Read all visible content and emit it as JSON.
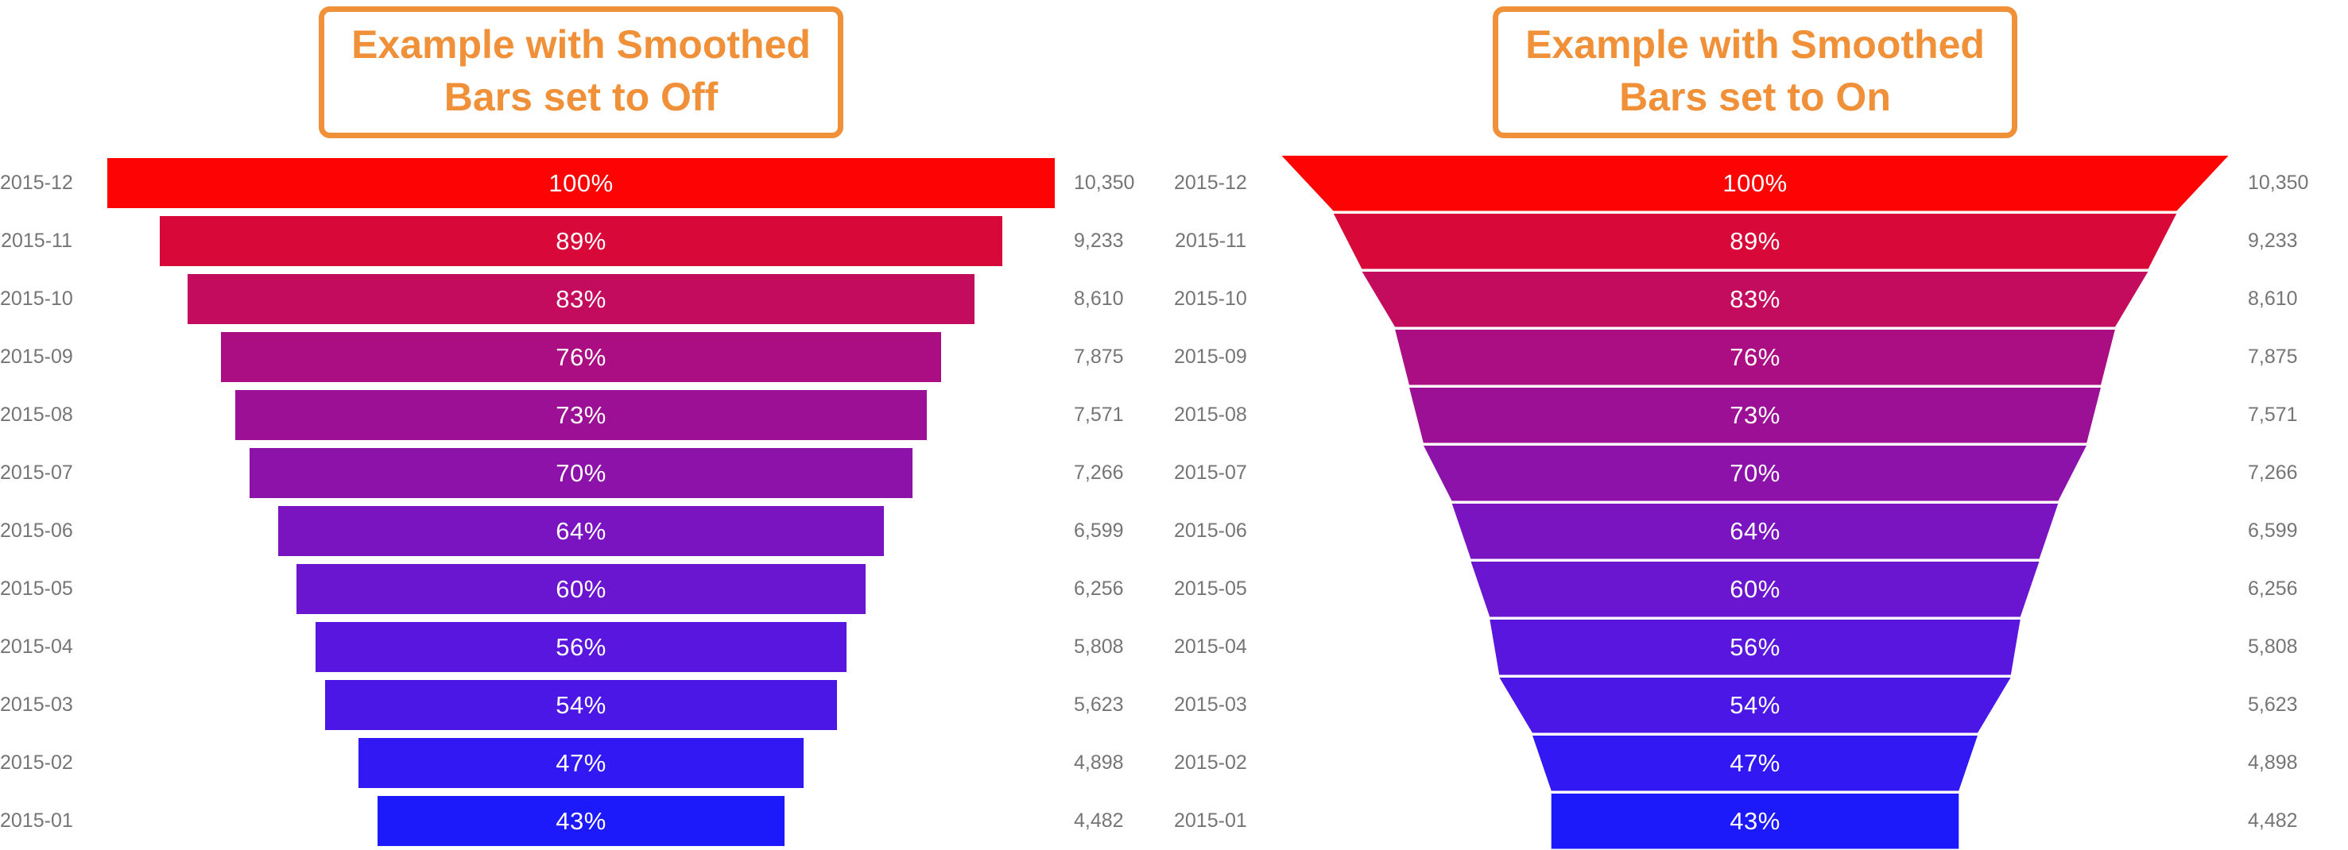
{
  "page": {
    "background": "#ffffff",
    "label_color": "#757575",
    "bar_text_color": "#ffffff",
    "title_color": "#f0913a"
  },
  "chart_data": [
    {
      "type": "funnel",
      "smoothed": false,
      "title": "Example with Smoothed Bars set to Off",
      "title_lines": [
        "Example with Smoothed",
        "Bars set to Off"
      ],
      "categories": [
        "2015-12",
        "2015-11",
        "2015-10",
        "2015-09",
        "2015-08",
        "2015-07",
        "2015-06",
        "2015-05",
        "2015-04",
        "2015-03",
        "2015-02",
        "2015-01"
      ],
      "percentages": [
        100,
        89,
        83,
        76,
        73,
        70,
        64,
        60,
        56,
        54,
        47,
        43
      ],
      "percent_labels": [
        "100%",
        "89%",
        "83%",
        "76%",
        "73%",
        "70%",
        "64%",
        "60%",
        "56%",
        "54%",
        "47%",
        "43%"
      ],
      "values": [
        10350,
        9233,
        8610,
        7875,
        7571,
        7266,
        6599,
        6256,
        5808,
        5623,
        4898,
        4482
      ],
      "value_labels": [
        "10,350",
        "9,233",
        "8,610",
        "7,875",
        "7,571",
        "7,266",
        "6,599",
        "6,256",
        "5,808",
        "5,623",
        "4,898",
        "4,482"
      ],
      "colors": [
        "#fd0303",
        "#d80938",
        "#c30c5e",
        "#ab0e82",
        "#9c1095",
        "#8c12aa",
        "#7a13c0",
        "#6a15cf",
        "#5916de",
        "#4b17e7",
        "#3218f3",
        "#1c19fb"
      ],
      "legend": "none",
      "grid": false
    },
    {
      "type": "funnel",
      "smoothed": true,
      "title": "Example with Smoothed Bars set to On",
      "title_lines": [
        "Example with Smoothed",
        "Bars set to On"
      ],
      "categories": [
        "2015-12",
        "2015-11",
        "2015-10",
        "2015-09",
        "2015-08",
        "2015-07",
        "2015-06",
        "2015-05",
        "2015-04",
        "2015-03",
        "2015-02",
        "2015-01"
      ],
      "percentages": [
        100,
        89,
        83,
        76,
        73,
        70,
        64,
        60,
        56,
        54,
        47,
        43
      ],
      "percent_labels": [
        "100%",
        "89%",
        "83%",
        "76%",
        "73%",
        "70%",
        "64%",
        "60%",
        "56%",
        "54%",
        "47%",
        "43%"
      ],
      "values": [
        10350,
        9233,
        8610,
        7875,
        7571,
        7266,
        6599,
        6256,
        5808,
        5623,
        4898,
        4482
      ],
      "value_labels": [
        "10,350",
        "9,233",
        "8,610",
        "7,875",
        "7,571",
        "7,266",
        "6,599",
        "6,256",
        "5,808",
        "5,623",
        "4,898",
        "4,482"
      ],
      "colors": [
        "#fd0303",
        "#d80938",
        "#c30c5e",
        "#ab0e82",
        "#9c1095",
        "#8c12aa",
        "#7a13c0",
        "#6a15cf",
        "#5916de",
        "#4b17e7",
        "#3218f3",
        "#1c19fb"
      ],
      "legend": "none",
      "grid": false
    }
  ]
}
